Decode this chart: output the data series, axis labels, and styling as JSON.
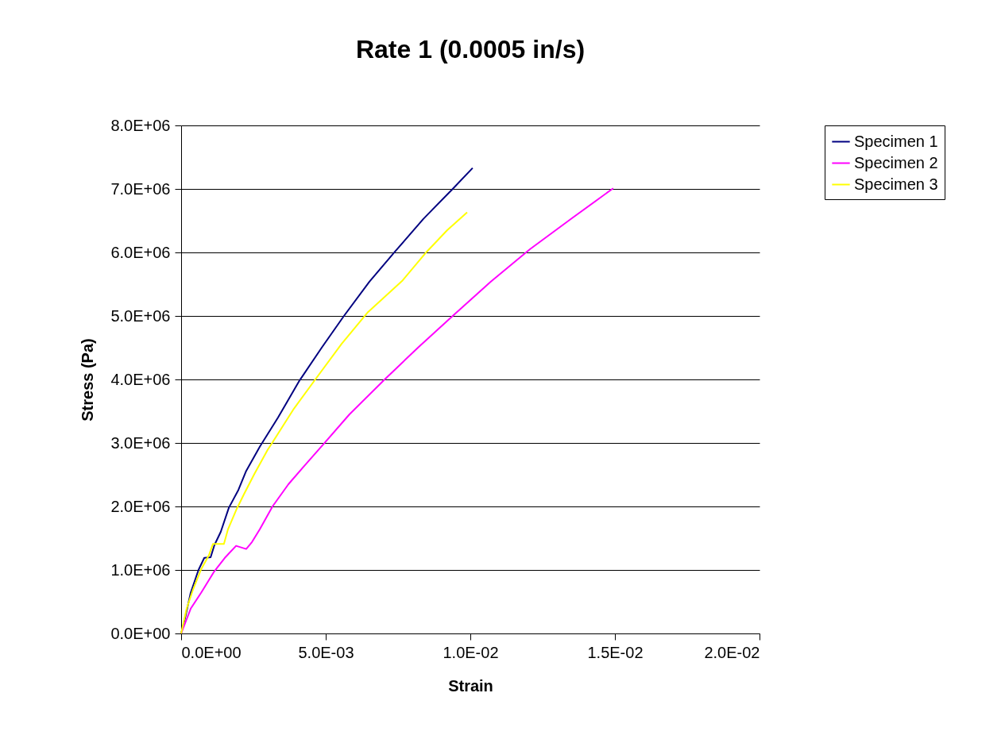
{
  "chart_data": {
    "type": "line",
    "title": "Rate 1 (0.0005 in/s)",
    "xlabel": "Strain",
    "ylabel": "Stress (Pa)",
    "xlim": [
      0,
      0.02
    ],
    "xticks": [
      {
        "value": 0,
        "label": "0.0E+00"
      },
      {
        "value": 0.005,
        "label": "5.0E-03"
      },
      {
        "value": 0.01,
        "label": "1.0E-02"
      },
      {
        "value": 0.015,
        "label": "1.5E-02"
      },
      {
        "value": 0.02,
        "label": "2.0E-02"
      }
    ],
    "ylim": [
      0,
      8000000
    ],
    "yticks": [
      {
        "value": 0,
        "label": "0.0E+00"
      },
      {
        "value": 1000000,
        "label": "1.0E+06"
      },
      {
        "value": 2000000,
        "label": "2.0E+06"
      },
      {
        "value": 3000000,
        "label": "3.0E+06"
      },
      {
        "value": 4000000,
        "label": "4.0E+06"
      },
      {
        "value": 5000000,
        "label": "5.0E+06"
      },
      {
        "value": 6000000,
        "label": "6.0E+06"
      },
      {
        "value": 7000000,
        "label": "7.0E+06"
      },
      {
        "value": 8000000,
        "label": "8.0E+06"
      }
    ],
    "grid": "y",
    "legend": "right",
    "series": [
      {
        "name": "Specimen 1",
        "color": "#000080",
        "x": [
          0,
          0.00011,
          0.00033,
          0.0006,
          0.0008,
          0.00102,
          0.00115,
          0.00137,
          0.00165,
          0.00198,
          0.00225,
          0.00272,
          0.00335,
          0.00409,
          0.00486,
          0.00563,
          0.00651,
          0.00739,
          0.00838,
          0.00939,
          0.01008
        ],
        "values": [
          0,
          190000,
          640000,
          1000000,
          1190000,
          1200000,
          1390000,
          1600000,
          1980000,
          2260000,
          2560000,
          2940000,
          3400000,
          3980000,
          4500000,
          5000000,
          5540000,
          6010000,
          6530000,
          7000000,
          7330000
        ]
      },
      {
        "name": "Specimen 2",
        "color": "#ff00ff",
        "x": [
          0,
          0.00033,
          0.00069,
          0.00115,
          0.00151,
          0.0019,
          0.00225,
          0.00245,
          0.00272,
          0.00316,
          0.00371,
          0.00426,
          0.00492,
          0.00582,
          0.00706,
          0.00821,
          0.00939,
          0.01071,
          0.01206,
          0.01352,
          0.01494
        ],
        "values": [
          0,
          390000,
          640000,
          980000,
          1190000,
          1380000,
          1330000,
          1440000,
          1640000,
          2000000,
          2350000,
          2640000,
          2980000,
          3450000,
          4010000,
          4510000,
          5000000,
          5540000,
          6050000,
          6540000,
          7010000
        ]
      },
      {
        "name": "Specimen 3",
        "color": "#ffff00",
        "x": [
          0,
          0.00019,
          0.00041,
          0.00069,
          0.00096,
          0.0011,
          0.00148,
          0.00162,
          0.0019,
          0.00217,
          0.00253,
          0.00299,
          0.00316,
          0.0039,
          0.00464,
          0.00555,
          0.00646,
          0.00766,
          0.00849,
          0.0092,
          0.00989
        ],
        "values": [
          0,
          390000,
          690000,
          1010000,
          1230000,
          1410000,
          1410000,
          1640000,
          1940000,
          2190000,
          2510000,
          2890000,
          3010000,
          3540000,
          4000000,
          4560000,
          5060000,
          5560000,
          6010000,
          6350000,
          6630000
        ]
      }
    ]
  }
}
